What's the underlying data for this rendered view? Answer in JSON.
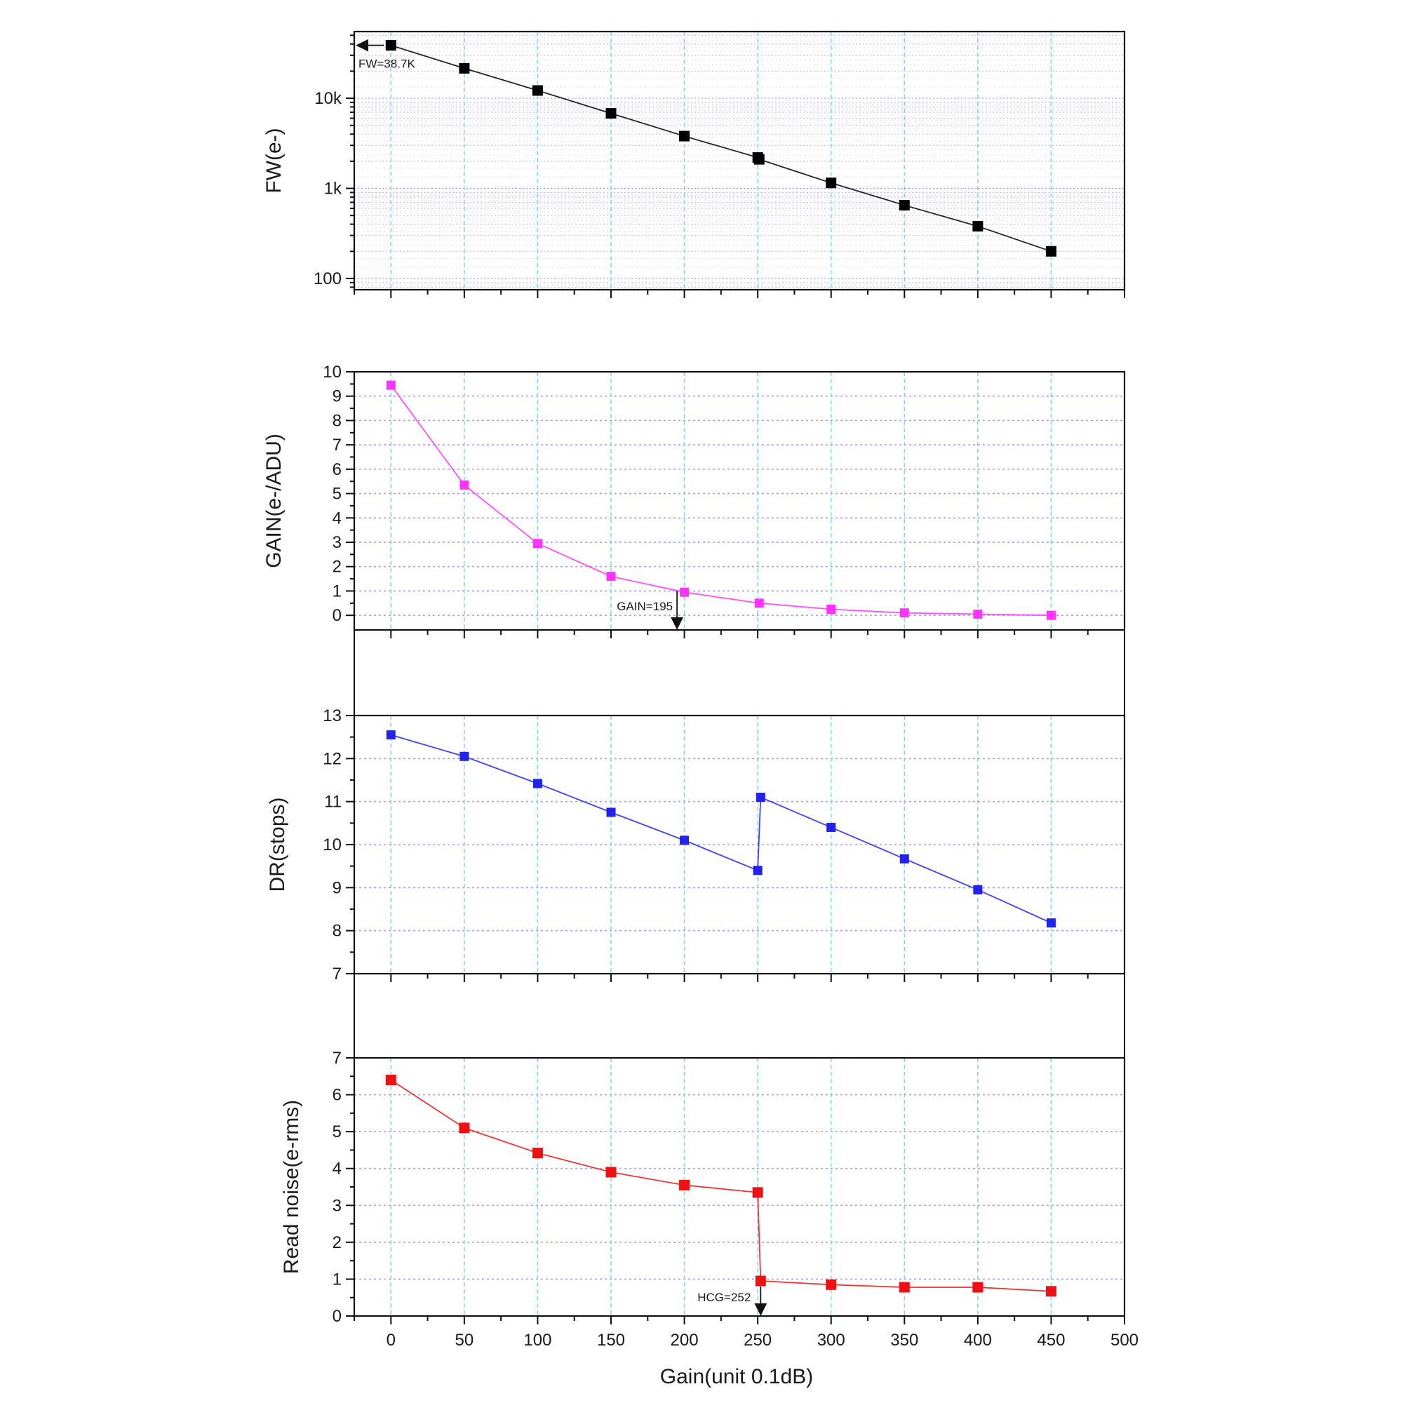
{
  "chart_data": {
    "type": "line",
    "x_axis": {
      "label": "Gain(unit 0.1dB)",
      "ticks": [
        0,
        50,
        100,
        150,
        200,
        250,
        300,
        350,
        400,
        450,
        500
      ],
      "range": [
        -25,
        500
      ],
      "grid": true
    },
    "charts": [
      {
        "id": "fw",
        "type": "line",
        "ylabel": "FW(e-)",
        "yscale": "log",
        "ylim": [
          75,
          55000
        ],
        "yticks": [
          100,
          1000,
          10000
        ],
        "ytick_labels": [
          "100",
          "1k",
          "10k"
        ],
        "grid": true,
        "color": "#000000",
        "series": [
          {
            "x": [
              0,
              50,
              100,
              150,
              200,
              250,
              251,
              300,
              350,
              400,
              450
            ],
            "y": [
              38700,
              21500,
              12200,
              6800,
              3800,
              2200,
              2100,
              1150,
              650,
              380,
              200
            ]
          }
        ],
        "annotations": [
          {
            "text": "FW=38.7K",
            "x": 0,
            "y": 38700
          }
        ]
      },
      {
        "id": "gain",
        "type": "line",
        "ylabel": "GAIN(e-/ADU)",
        "yscale": "linear",
        "ylim": [
          -0.6,
          10
        ],
        "yticks": [
          0,
          1,
          2,
          3,
          4,
          5,
          6,
          7,
          8,
          9,
          10
        ],
        "grid": true,
        "color": "#ff33ff",
        "series": [
          {
            "x": [
              0,
              50,
              100,
              150,
              200,
              251,
              300,
              350,
              400,
              450
            ],
            "y": [
              9.45,
              5.35,
              2.95,
              1.6,
              0.95,
              0.5,
              0.25,
              0.1,
              0.05,
              0.0
            ]
          }
        ],
        "annotations": [
          {
            "text": "GAIN=195",
            "x": 195,
            "y": 1.0
          }
        ]
      },
      {
        "id": "dr",
        "type": "line",
        "ylabel": "DR(stops)",
        "yscale": "linear",
        "ylim": [
          7,
          13
        ],
        "yticks": [
          7,
          8,
          9,
          10,
          11,
          12,
          13
        ],
        "grid": true,
        "color": "#2222ee",
        "series": [
          {
            "x": [
              0,
              50,
              100,
              150,
              200,
              250,
              252,
              300,
              350,
              400,
              450
            ],
            "y": [
              12.55,
              12.05,
              11.42,
              10.75,
              10.1,
              9.4,
              11.1,
              10.4,
              9.67,
              8.95,
              8.18
            ]
          }
        ],
        "annotations": []
      },
      {
        "id": "rn",
        "type": "line",
        "ylabel": "Read noise(e-rms)",
        "yscale": "linear",
        "ylim": [
          0,
          7
        ],
        "yticks": [
          0,
          1,
          2,
          3,
          4,
          5,
          6,
          7
        ],
        "grid": true,
        "color": "#ee1111",
        "series": [
          {
            "x": [
              0,
              50,
              100,
              150,
              200,
              250,
              252,
              300,
              350,
              400,
              450
            ],
            "y": [
              6.4,
              5.1,
              4.42,
              3.9,
              3.55,
              3.35,
              0.95,
              0.85,
              0.78,
              0.78,
              0.67
            ]
          }
        ],
        "annotations": [
          {
            "text": "HCG=252",
            "x": 252,
            "y": 0.95
          }
        ]
      }
    ]
  }
}
